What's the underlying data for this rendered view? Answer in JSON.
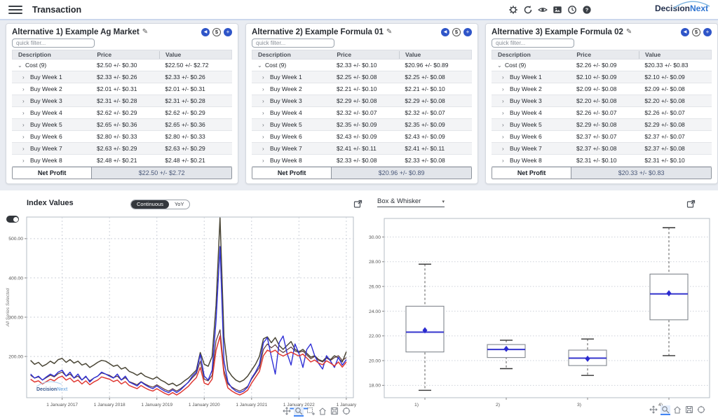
{
  "header": {
    "title": "Transaction",
    "icons": [
      "settings",
      "refresh",
      "visibility",
      "image",
      "history",
      "help"
    ],
    "logo_decision": "Decision",
    "logo_next": "Next"
  },
  "ui": {
    "panel_buttons": {
      "back": "◀",
      "dollar": "$",
      "add": "+"
    },
    "chevron_expanded": "⌄",
    "chevron_collapsed": "›",
    "select_caret": "▾"
  },
  "panels": [
    {
      "title": "Alternative 1) Example Ag Market",
      "filter_placeholder": "quick filter...",
      "columns": [
        "Description",
        "Price",
        "Value"
      ],
      "rows": [
        {
          "label": "Cost (9)",
          "expanded": true,
          "price": "$2.50 +/- $0.30",
          "value": "$22.50 +/- $2.72"
        },
        {
          "label": "Buy Week 1",
          "expanded": false,
          "price": "$2.33 +/- $0.26",
          "value": "$2.33 +/- $0.26"
        },
        {
          "label": "Buy Week 2",
          "expanded": false,
          "price": "$2.01 +/- $0.31",
          "value": "$2.01 +/- $0.31"
        },
        {
          "label": "Buy Week 3",
          "expanded": false,
          "price": "$2.31 +/- $0.28",
          "value": "$2.31 +/- $0.28"
        },
        {
          "label": "Buy Week 4",
          "expanded": false,
          "price": "$2.62 +/- $0.29",
          "value": "$2.62 +/- $0.29"
        },
        {
          "label": "Buy Week 5",
          "expanded": false,
          "price": "$2.65 +/- $0.36",
          "value": "$2.65 +/- $0.36"
        },
        {
          "label": "Buy Week 6",
          "expanded": false,
          "price": "$2.80 +/- $0.33",
          "value": "$2.80 +/- $0.33"
        },
        {
          "label": "Buy Week 7",
          "expanded": false,
          "price": "$2.63 +/- $0.29",
          "value": "$2.63 +/- $0.29"
        },
        {
          "label": "Buy Week 8",
          "expanded": false,
          "price": "$2.48 +/- $0.21",
          "value": "$2.48 +/- $0.21"
        }
      ],
      "net_profit_label": "Net Profit",
      "net_profit_value": "$22.50 +/- $2.72"
    },
    {
      "title": "Alternative 2) Example Formula 01",
      "filter_placeholder": "quick filter...",
      "columns": [
        "Description",
        "Price",
        "Value"
      ],
      "rows": [
        {
          "label": "Cost (9)",
          "expanded": true,
          "price": "$2.33 +/- $0.10",
          "value": "$20.96 +/- $0.89"
        },
        {
          "label": "Buy Week 1",
          "expanded": false,
          "price": "$2.25 +/- $0.08",
          "value": "$2.25 +/- $0.08"
        },
        {
          "label": "Buy Week 2",
          "expanded": false,
          "price": "$2.21 +/- $0.10",
          "value": "$2.21 +/- $0.10"
        },
        {
          "label": "Buy Week 3",
          "expanded": false,
          "price": "$2.29 +/- $0.08",
          "value": "$2.29 +/- $0.08"
        },
        {
          "label": "Buy Week 4",
          "expanded": false,
          "price": "$2.32 +/- $0.07",
          "value": "$2.32 +/- $0.07"
        },
        {
          "label": "Buy Week 5",
          "expanded": false,
          "price": "$2.35 +/- $0.09",
          "value": "$2.35 +/- $0.09"
        },
        {
          "label": "Buy Week 6",
          "expanded": false,
          "price": "$2.43 +/- $0.09",
          "value": "$2.43 +/- $0.09"
        },
        {
          "label": "Buy Week 7",
          "expanded": false,
          "price": "$2.41 +/- $0.11",
          "value": "$2.41 +/- $0.11"
        },
        {
          "label": "Buy Week 8",
          "expanded": false,
          "price": "$2.33 +/- $0.08",
          "value": "$2.33 +/- $0.08"
        }
      ],
      "net_profit_label": "Net Profit",
      "net_profit_value": "$20.96 +/- $0.89"
    },
    {
      "title": "Alternative 3) Example Formula 02",
      "filter_placeholder": "quick filter...",
      "columns": [
        "Description",
        "Price",
        "Value"
      ],
      "rows": [
        {
          "label": "Cost (9)",
          "expanded": true,
          "price": "$2.26 +/- $0.09",
          "value": "$20.33 +/- $0.83"
        },
        {
          "label": "Buy Week 1",
          "expanded": false,
          "price": "$2.10 +/- $0.09",
          "value": "$2.10 +/- $0.09"
        },
        {
          "label": "Buy Week 2",
          "expanded": false,
          "price": "$2.09 +/- $0.08",
          "value": "$2.09 +/- $0.08"
        },
        {
          "label": "Buy Week 3",
          "expanded": false,
          "price": "$2.20 +/- $0.08",
          "value": "$2.20 +/- $0.08"
        },
        {
          "label": "Buy Week 4",
          "expanded": false,
          "price": "$2.26 +/- $0.07",
          "value": "$2.26 +/- $0.07"
        },
        {
          "label": "Buy Week 5",
          "expanded": false,
          "price": "$2.29 +/- $0.08",
          "value": "$2.29 +/- $0.08"
        },
        {
          "label": "Buy Week 6",
          "expanded": false,
          "price": "$2.37 +/- $0.07",
          "value": "$2.37 +/- $0.07"
        },
        {
          "label": "Buy Week 7",
          "expanded": false,
          "price": "$2.37 +/- $0.08",
          "value": "$2.37 +/- $0.08"
        },
        {
          "label": "Buy Week 8",
          "expanded": false,
          "price": "$2.31 +/- $0.10",
          "value": "$2.31 +/- $0.10"
        }
      ],
      "net_profit_label": "Net Profit",
      "net_profit_value": "$20.33 +/- $0.83"
    }
  ],
  "charts": {
    "index_values": {
      "title": "Index Values",
      "toggle": [
        "Continuous",
        "YoY"
      ],
      "active_toggle": "Continuous",
      "y_axis_label": "All Series Selected",
      "watermark_decision": "Decision",
      "watermark_next": "Next"
    },
    "box_whisker": {
      "selector": "Box & Whisker"
    },
    "toolbar_left": [
      "pan",
      "zoom",
      "zoom-box",
      "home",
      "save",
      "reset"
    ],
    "toolbar_right": [
      "pan",
      "zoom",
      "home",
      "save",
      "reset"
    ]
  },
  "chart_data": [
    {
      "type": "line",
      "title": "Index Values",
      "ylabel": "All Series Selected",
      "xlim": [
        2016.25,
        2023.15
      ],
      "ylim": [
        95,
        555
      ],
      "yticks": [
        200,
        300,
        400,
        500
      ],
      "xticks": [
        2017,
        2018,
        2019,
        2020,
        2021,
        2022,
        2023
      ],
      "xtick_labels": [
        "1 January 2017",
        "1 January 2018",
        "1 January 2019",
        "1 January 2020",
        "1 January 2021",
        "1 January 2022",
        "1 January"
      ],
      "active_tick": "1 January 2022",
      "x_start": 2016.3333,
      "x_step": 0.083333,
      "grid": true,
      "legend": "none",
      "series": [
        {
          "name": "series-olive",
          "color": "#4a4636",
          "width": 1.5,
          "values": [
            190,
            180,
            185,
            175,
            180,
            188,
            182,
            192,
            195,
            185,
            192,
            183,
            188,
            178,
            182,
            172,
            178,
            185,
            190,
            188,
            182,
            175,
            178,
            168,
            172,
            162,
            158,
            152,
            158,
            150,
            146,
            142,
            148,
            140,
            135,
            128,
            132,
            125,
            130,
            138,
            145,
            155,
            165,
            210,
            180,
            175,
            200,
            330,
            553,
            250,
            165,
            150,
            140,
            135,
            140,
            150,
            165,
            180,
            200,
            245,
            250,
            235,
            248,
            228,
            218,
            228,
            238,
            218,
            212,
            218,
            208,
            198,
            202,
            192,
            188,
            198,
            192,
            202,
            196,
            186,
            212
          ]
        },
        {
          "name": "series-maroon",
          "color": "#5c3a3a",
          "width": 1.2,
          "values": [
            152,
            145,
            148,
            140,
            146,
            152,
            148,
            156,
            160,
            150,
            155,
            145,
            150,
            140,
            148,
            138,
            145,
            150,
            158,
            155,
            152,
            146,
            150,
            140,
            146,
            136,
            132,
            128,
            136,
            130,
            125,
            122,
            128,
            122,
            116,
            112,
            118,
            112,
            118,
            126,
            134,
            146,
            156,
            188,
            142,
            138,
            152,
            240,
            268,
            165,
            130,
            122,
            116,
            112,
            117,
            124,
            142,
            157,
            172,
            218,
            232,
            222,
            230,
            217,
            210,
            217,
            224,
            214,
            210,
            214,
            204,
            194,
            200,
            190,
            186,
            196,
            190,
            197,
            202,
            190,
            197
          ]
        },
        {
          "name": "series-blue",
          "color": "#2f2fd6",
          "width": 1.4,
          "values": [
            155,
            145,
            150,
            140,
            148,
            155,
            150,
            160,
            165,
            150,
            160,
            145,
            155,
            140,
            150,
            135,
            145,
            150,
            160,
            155,
            150,
            145,
            155,
            140,
            150,
            135,
            130,
            125,
            135,
            128,
            122,
            118,
            125,
            118,
            112,
            108,
            115,
            108,
            115,
            125,
            135,
            150,
            160,
            205,
            150,
            140,
            165,
            290,
            480,
            190,
            135,
            120,
            112,
            108,
            112,
            122,
            145,
            160,
            180,
            235,
            248,
            200,
            155,
            235,
            252,
            208,
            178,
            232,
            208,
            172,
            218,
            232,
            202,
            182,
            168,
            202,
            188,
            172,
            198,
            178,
            192
          ]
        },
        {
          "name": "series-red",
          "color": "#e03a34",
          "width": 1.5,
          "values": [
            142,
            135,
            138,
            130,
            136,
            142,
            138,
            146,
            150,
            140,
            145,
            135,
            140,
            130,
            138,
            128,
            135,
            140,
            148,
            145,
            142,
            136,
            140,
            130,
            136,
            126,
            122,
            118,
            126,
            120,
            115,
            112,
            118,
            112,
            106,
            102,
            108,
            102,
            108,
            116,
            124,
            136,
            146,
            172,
            132,
            128,
            142,
            215,
            252,
            155,
            120,
            112,
            106,
            102,
            107,
            114,
            132,
            147,
            162,
            202,
            216,
            211,
            216,
            206,
            201,
            206,
            211,
            206,
            201,
            206,
            196,
            186,
            191,
            183,
            179,
            189,
            183,
            176,
            186,
            173,
            186
          ]
        }
      ]
    },
    {
      "type": "box",
      "title": "Box & Whisker",
      "categories": [
        "1)",
        "2)",
        "3)",
        "4)"
      ],
      "ylim": [
        17,
        31.5
      ],
      "yticks": [
        18,
        20,
        22,
        24,
        26,
        28,
        30
      ],
      "grid": true,
      "boxes": [
        {
          "low": 17.6,
          "q1": 20.7,
          "median": 22.3,
          "mean": 22.45,
          "q3": 24.4,
          "high": 27.8
        },
        {
          "low": 19.35,
          "q1": 20.25,
          "median": 20.9,
          "mean": 20.95,
          "q3": 21.3,
          "high": 21.65
        },
        {
          "low": 18.8,
          "q1": 19.6,
          "median": 20.2,
          "mean": 20.15,
          "q3": 20.85,
          "high": 21.75
        },
        {
          "low": 20.4,
          "q1": 23.3,
          "median": 25.4,
          "mean": 25.45,
          "q3": 27.0,
          "high": 30.75
        }
      ]
    }
  ]
}
